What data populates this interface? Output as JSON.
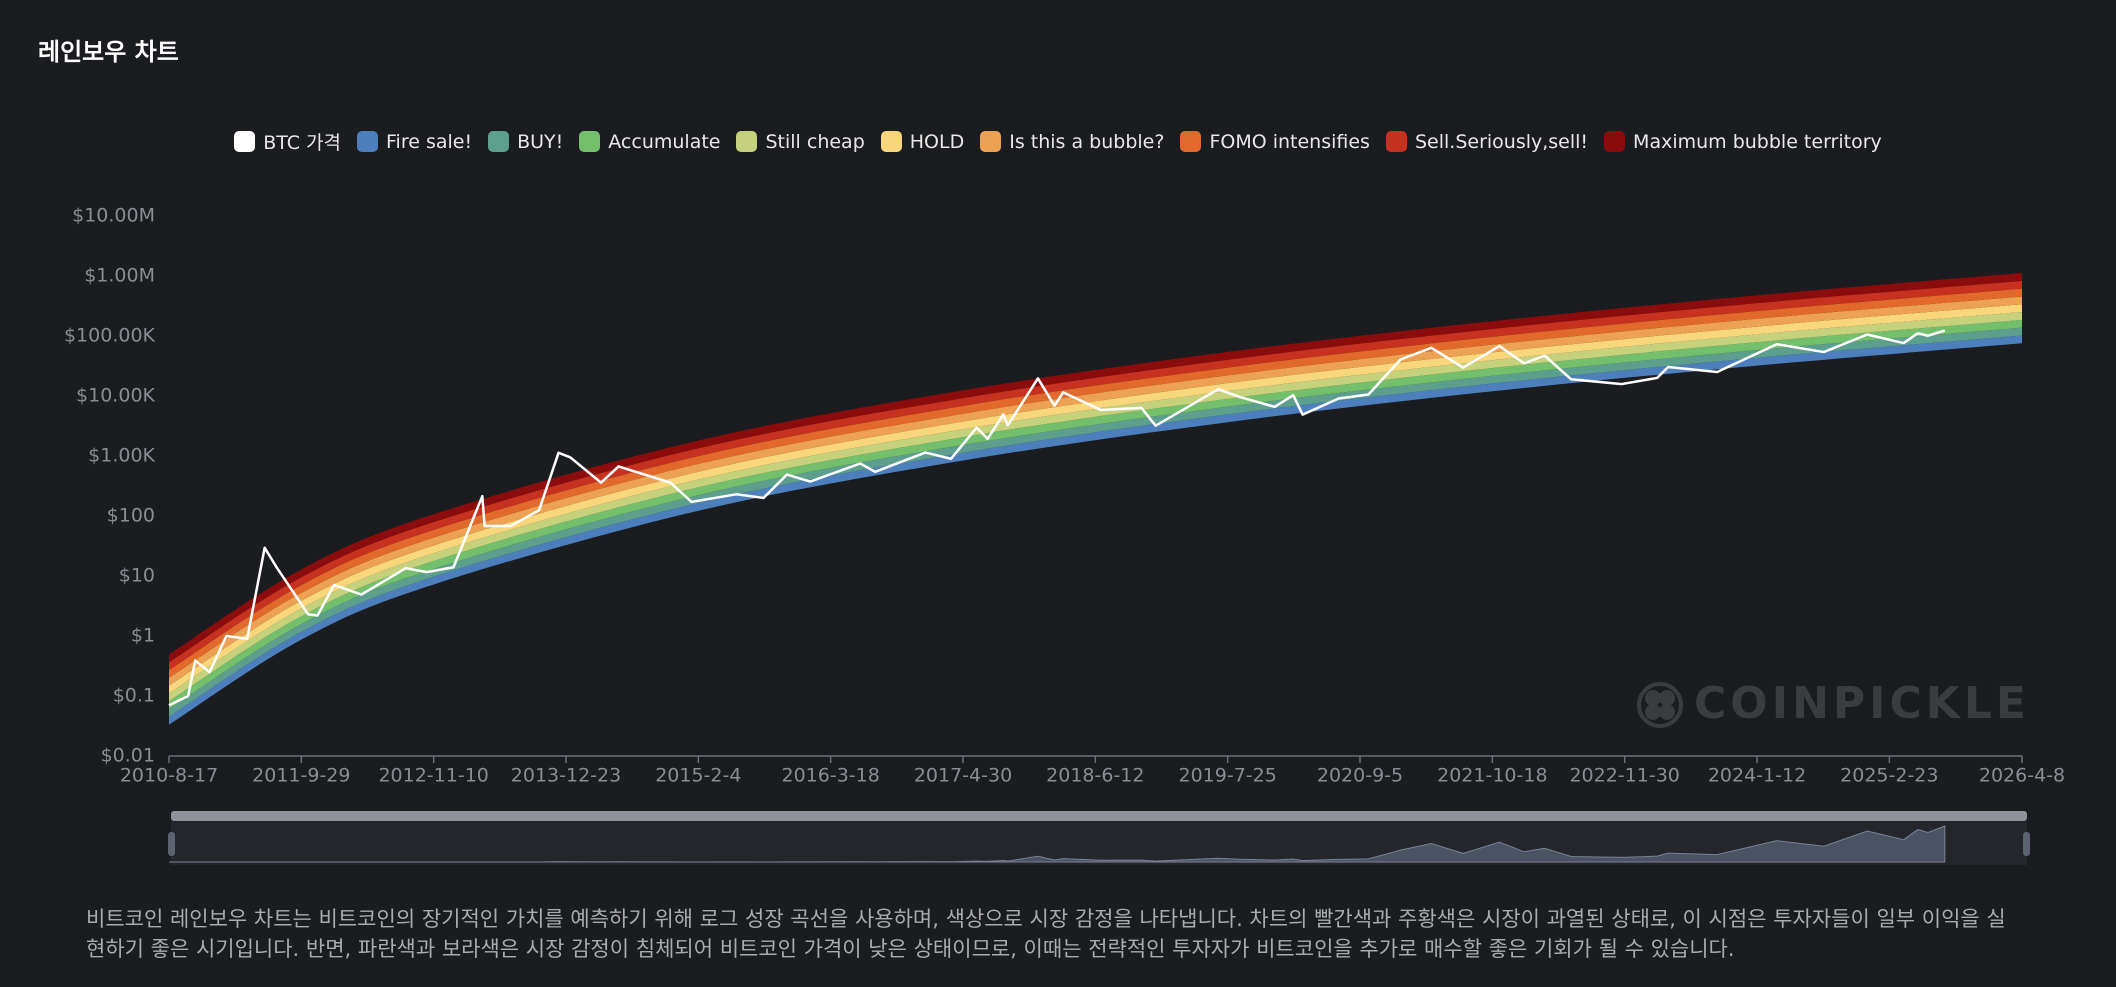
{
  "header": {
    "title": "레인보우 차트"
  },
  "chart_data": {
    "type": "rainbow",
    "watermark": "COINPICKLE",
    "ylog": true,
    "grid": false,
    "xlim": [
      "2010-8-17",
      "2026-4-8"
    ],
    "xticks": [
      "2010-8-17",
      "2011-9-29",
      "2012-11-10",
      "2013-12-23",
      "2015-2-4",
      "2016-3-18",
      "2017-4-30",
      "2018-6-12",
      "2019-7-25",
      "2020-9-5",
      "2021-10-18",
      "2022-11-30",
      "2024-1-12",
      "2025-2-23",
      "2026-4-8"
    ],
    "ylim": [
      0.01,
      10000000
    ],
    "yticks": [
      {
        "value": 0.01,
        "label": "$0.01"
      },
      {
        "value": 0.1,
        "label": "$0.1"
      },
      {
        "value": 1,
        "label": "$1"
      },
      {
        "value": 10,
        "label": "$10"
      },
      {
        "value": 100,
        "label": "$100"
      },
      {
        "value": 1000,
        "label": "$1.00K"
      },
      {
        "value": 10000,
        "label": "$10.00K"
      },
      {
        "value": 100000,
        "label": "$100.00K"
      },
      {
        "value": 1000000,
        "label": "$1.00M"
      },
      {
        "value": 10000000,
        "label": "$10.00M"
      }
    ],
    "x": [
      "2010-8-17",
      "2011-9-29",
      "2012-11-10",
      "2015-2-4",
      "2017-4-30",
      "2019-7-25",
      "2021-10-18",
      "2024-1-12",
      "2026-4-8"
    ],
    "series": [
      {
        "name": "BTC 가격",
        "color": "#ffffff",
        "x": [
          "2010-8-17",
          "2010-10-15",
          "2010-11-6",
          "2010-12-20",
          "2011-2-10",
          "2011-4-15",
          "2011-6-8",
          "2011-7-15",
          "2011-10-20",
          "2011-11-18",
          "2012-1-8",
          "2012-4-1",
          "2012-8-16",
          "2012-10-20",
          "2013-1-10",
          "2013-4-9",
          "2013-4-16",
          "2013-7-5",
          "2013-10-1",
          "2013-11-30",
          "2014-1-5",
          "2014-4-10",
          "2014-6-3",
          "2014-11-10",
          "2015-1-14",
          "2015-6-1",
          "2015-8-24",
          "2015-11-4",
          "2016-1-15",
          "2016-6-17",
          "2016-8-2",
          "2017-1-4",
          "2017-3-24",
          "2017-6-11",
          "2017-7-15",
          "2017-9-1",
          "2017-9-15",
          "2017-12-17",
          "2018-2-6",
          "2018-3-5",
          "2018-6-29",
          "2018-11-1",
          "2018-12-15",
          "2019-6-26",
          "2019-9-1",
          "2019-12-17",
          "2020-2-12",
          "2020-3-12",
          "2020-7-1",
          "2020-10-1",
          "2021-1-8",
          "2021-4-13",
          "2021-7-20",
          "2021-11-9",
          "2022-1-24",
          "2022-3-28",
          "2022-6-18",
          "2022-11-21",
          "2023-3-10",
          "2023-4-13",
          "2023-9-11",
          "2024-3-13",
          "2024-8-5",
          "2024-12-17",
          "2025-4-8",
          "2025-5-22",
          "2025-6-22",
          "2025-8-13"
        ],
        "values": [
          0.07,
          0.1,
          0.39,
          0.25,
          1.0,
          0.9,
          29.6,
          13.9,
          2.3,
          2.2,
          7.1,
          4.9,
          13.5,
          11.6,
          14,
          214,
          68,
          68,
          125,
          1130,
          950,
          360,
          670,
          360,
          172,
          230,
          200,
          490,
          375,
          750,
          545,
          1140,
          900,
          2970,
          1930,
          4920,
          3230,
          19650,
          6900,
          11500,
          5850,
          6350,
          3200,
          13000,
          9600,
          6600,
          10300,
          4900,
          9100,
          10600,
          40600,
          63500,
          29800,
          68000,
          35000,
          47100,
          19000,
          15800,
          20000,
          30400,
          25100,
          73000,
          54000,
          106000,
          76300,
          111000,
          101000,
          123300
        ]
      },
      {
        "name": "Fire sale!",
        "color": "#4e7fbd",
        "values": [
          0.0386,
          1.01,
          8.39,
          142,
          977,
          4250,
          13900,
          37300,
          87900
        ]
      },
      {
        "name": "BUY!",
        "color": "#5c9f8c",
        "values": [
          0.0521,
          1.36,
          11.3,
          192,
          1318,
          5740,
          18700,
          50400,
          118600
        ]
      },
      {
        "name": "Accumulate",
        "color": "#74bf6c",
        "values": [
          0.0703,
          1.84,
          15.3,
          259,
          1778,
          7740,
          25200,
          67900,
          159900
        ]
      },
      {
        "name": "Still cheap",
        "color": "#c6d27b",
        "values": [
          0.0949,
          2.48,
          20.6,
          349,
          2399,
          10400,
          34000,
          91600,
          215800
        ]
      },
      {
        "name": "HOLD",
        "color": "#f8d67c",
        "values": [
          0.128,
          3.34,
          27.8,
          471,
          3236,
          14100,
          45900,
          123600,
          291100
        ]
      },
      {
        "name": "Is this a bubble?",
        "color": "#eda152",
        "values": [
          0.173,
          4.51,
          37.5,
          636,
          4365,
          19000,
          61900,
          166700,
          392600
        ]
      },
      {
        "name": "FOMO intensifies",
        "color": "#e1692c",
        "values": [
          0.233,
          6.08,
          50.6,
          858,
          5890,
          25600,
          83600,
          225000,
          529800
        ]
      },
      {
        "name": "Sell.Seriously,sell!",
        "color": "#c6321f",
        "values": [
          0.314,
          8.2,
          68.2,
          1157,
          7944,
          34600,
          112700,
          303400,
          714500
        ]
      },
      {
        "name": "Maximum bubble territory",
        "color": "#8a0c0c",
        "values": [
          0.424,
          11.1,
          92.1,
          1561,
          10720,
          46700,
          152100,
          409500,
          964200
        ]
      }
    ]
  },
  "description": "비트코인 레인보우 차트는 비트코인의 장기적인 가치를 예측하기 위해 로그 성장 곡선을 사용하며, 색상으로 시장 감정을 나타냅니다. 차트의 빨간색과 주황색은 시장이 과열된 상태로, 이 시점은 투자자들이 일부 이익을 실현하기 좋은 시기입니다. 반면, 파란색과 보라색은 시장 감정이 침체되어 비트코인 가격이 낮은 상태이므로, 이때는 전략적인 투자자가 비트코인을 추가로 매수할 좋은 기회가 될 수 있습니다."
}
